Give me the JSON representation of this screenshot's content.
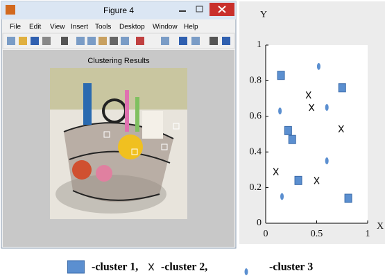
{
  "window": {
    "title": "Figure 4",
    "menu": [
      "File",
      "Edit",
      "View",
      "Insert",
      "Tools",
      "Desktop",
      "Window",
      "Help"
    ],
    "plot_title": "Clustering Results"
  },
  "chart_data": {
    "type": "scatter",
    "y_label": "Y",
    "x_label": "X",
    "xlim": [
      0,
      1
    ],
    "xticks": [
      0,
      0.5,
      1
    ],
    "ylim": [
      0,
      1
    ],
    "yticks": [
      0,
      0.2,
      0.4,
      0.6,
      0.8,
      1
    ],
    "series": [
      {
        "name": "-cluster 1,",
        "marker": "square",
        "color": "#5b8fd0",
        "x": [
          0.15,
          0.22,
          0.26,
          0.32,
          0.75,
          0.81
        ],
        "values": [
          0.83,
          0.52,
          0.47,
          0.24,
          0.76,
          0.14
        ]
      },
      {
        "name": "-cluster 2,",
        "marker": "x",
        "color": "#111111",
        "x": [
          0.42,
          0.45,
          0.74,
          0.1,
          0.5
        ],
        "values": [
          0.72,
          0.65,
          0.53,
          0.29,
          0.24
        ]
      },
      {
        "name": "-cluster 3",
        "marker": "ellipse",
        "color": "#5b8fd0",
        "x": [
          0.52,
          0.14,
          0.6,
          0.6,
          0.16
        ],
        "values": [
          0.88,
          0.63,
          0.65,
          0.35,
          0.15
        ]
      }
    ]
  }
}
